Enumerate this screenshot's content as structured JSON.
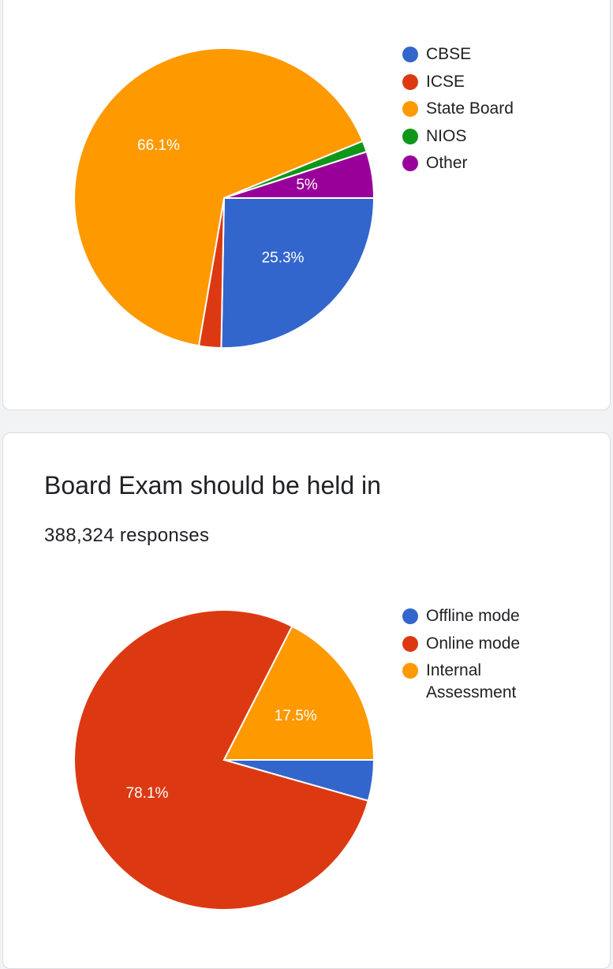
{
  "colors": {
    "blue": "#3366cc",
    "red": "#dc3912",
    "orange": "#ff9900",
    "green": "#109618",
    "purple": "#990099"
  },
  "chart_data": [
    {
      "type": "pie",
      "title": "",
      "categories": [
        "CBSE",
        "ICSE",
        "State Board",
        "NIOS",
        "Other"
      ],
      "values": [
        25.3,
        2.4,
        66.1,
        1.2,
        5.0
      ],
      "value_labels": [
        "25.3%",
        "",
        "66.1%",
        "",
        "5%"
      ],
      "colors": [
        "#3366cc",
        "#dc3912",
        "#ff9900",
        "#109618",
        "#990099"
      ],
      "legend_position": "right"
    },
    {
      "type": "pie",
      "title": "Board Exam should be held in",
      "responses": "388,324 responses",
      "categories": [
        "Offline mode",
        "Online mode",
        "Internal Assessment"
      ],
      "values": [
        4.4,
        78.1,
        17.5
      ],
      "value_labels": [
        "",
        "78.1%",
        "17.5%"
      ],
      "colors": [
        "#3366cc",
        "#dc3912",
        "#ff9900"
      ],
      "legend_position": "right"
    }
  ]
}
